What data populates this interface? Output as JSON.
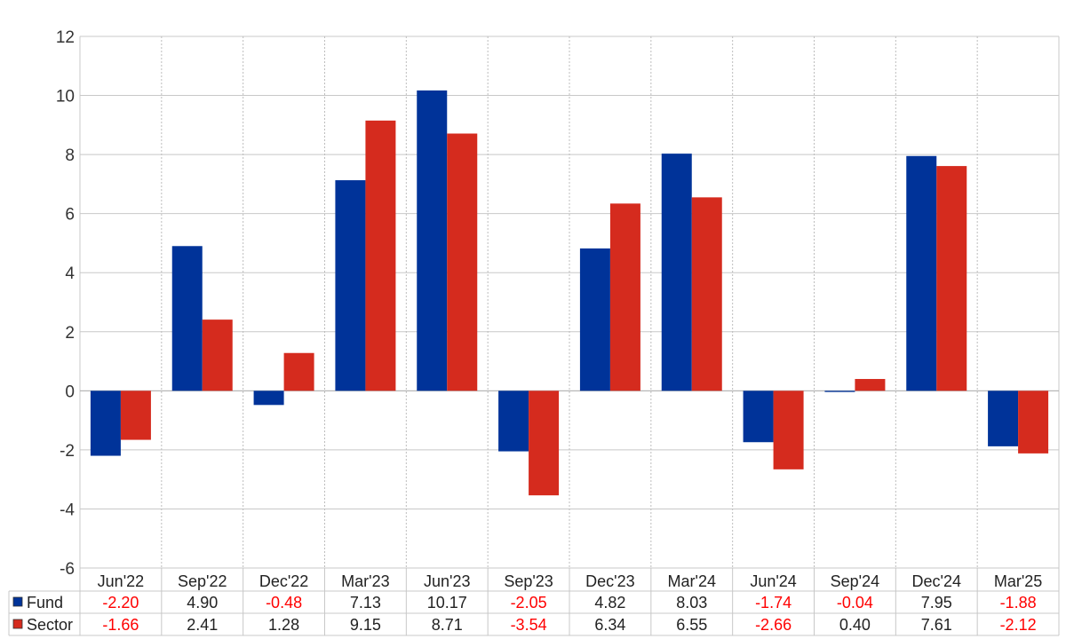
{
  "chart_data": {
    "type": "bar",
    "categories": [
      "Jun'22",
      "Sep'22",
      "Dec'22",
      "Mar'23",
      "Jun'23",
      "Sep'23",
      "Dec'23",
      "Mar'24",
      "Jun'24",
      "Sep'24",
      "Dec'24",
      "Mar'25"
    ],
    "series": [
      {
        "name": "Fund",
        "color": "#003399",
        "values": [
          -2.2,
          4.9,
          -0.48,
          7.13,
          10.17,
          -2.05,
          4.82,
          8.03,
          -1.74,
          -0.04,
          7.95,
          -1.88
        ]
      },
      {
        "name": "Sector",
        "color": "#d52b1e",
        "values": [
          -1.66,
          2.41,
          1.28,
          9.15,
          8.71,
          -3.54,
          6.34,
          6.55,
          -2.66,
          0.4,
          7.61,
          -2.12
        ]
      }
    ],
    "table_values": {
      "Fund": [
        "-2.20",
        "4.90",
        "-0.48",
        "7.13",
        "10.17",
        "-2.05",
        "4.82",
        "8.03",
        "-1.74",
        "-0.04",
        "7.95",
        "-1.88"
      ],
      "Sector": [
        "-1.66",
        "2.41",
        "1.28",
        "9.15",
        "8.71",
        "-3.54",
        "6.34",
        "6.55",
        "-2.66",
        "0.40",
        "7.61",
        "-2.12"
      ]
    },
    "ylim": [
      -6,
      12
    ],
    "yticks": [
      -6,
      -4,
      -2,
      0,
      2,
      4,
      6,
      8,
      10,
      12
    ],
    "grid": true,
    "legend": "data table, bottom-left",
    "negative_value_color": "#ff0000",
    "positive_value_color": "#222222"
  }
}
